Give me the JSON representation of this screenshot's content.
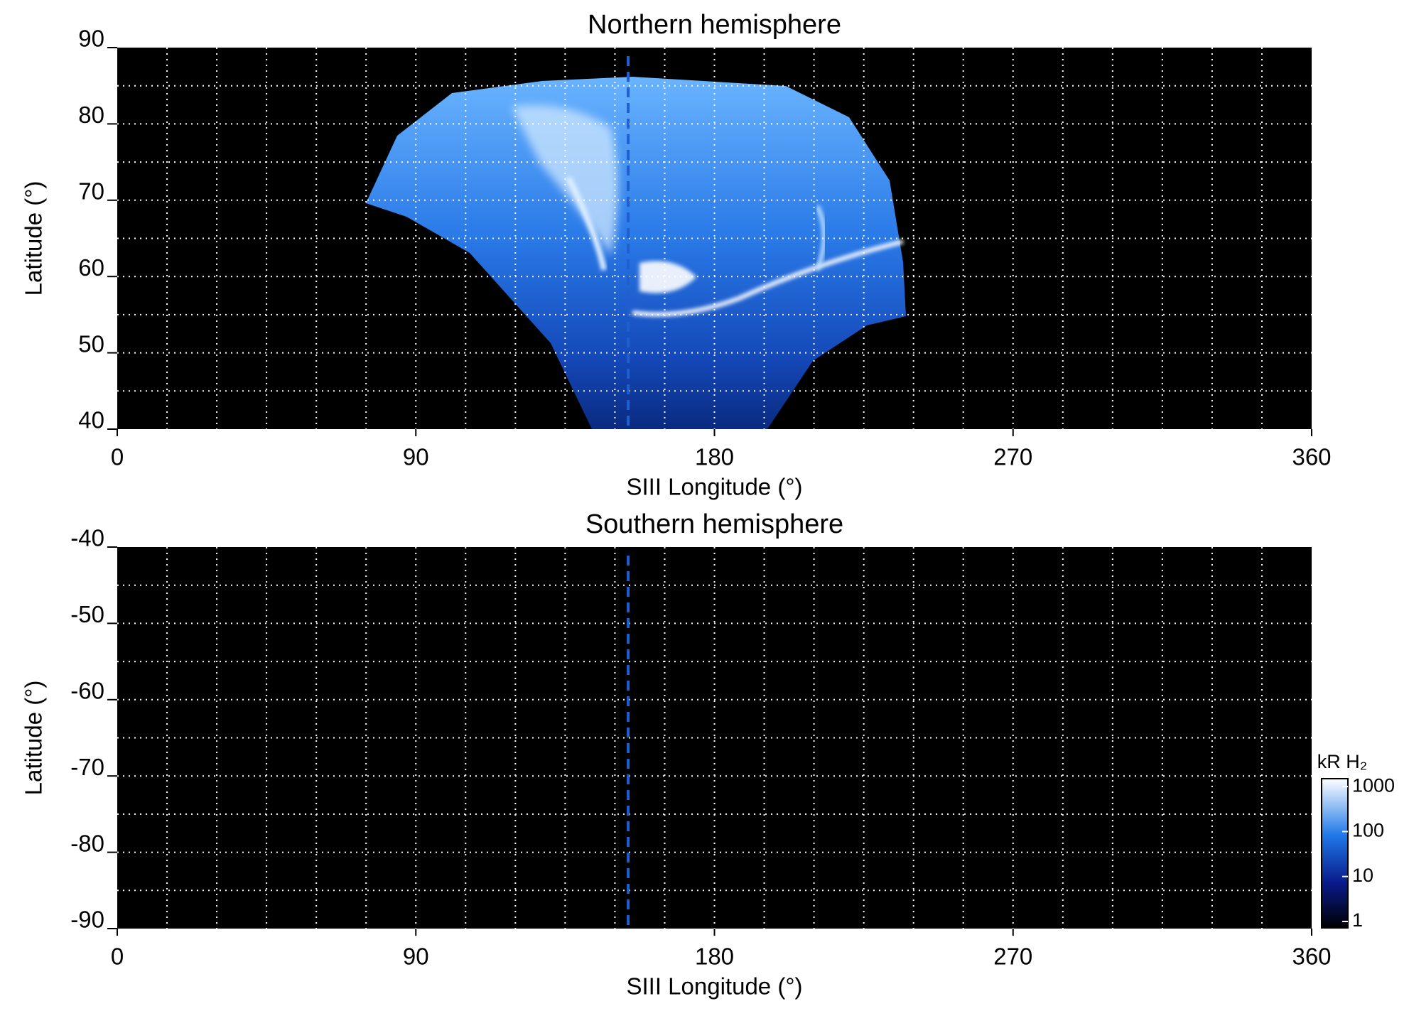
{
  "chart_data": [
    {
      "type": "heatmap",
      "title": "Northern hemisphere",
      "x_label": "SIII Longitude (°)",
      "y_label": "Latitude (°)",
      "xlim": [
        0,
        360
      ],
      "xticks": [
        0,
        90,
        180,
        270,
        360
      ],
      "ylim": [
        40,
        90
      ],
      "yticks": [
        40,
        50,
        60,
        70,
        80,
        90
      ],
      "xgrid": [
        15,
        30,
        45,
        60,
        75,
        90,
        105,
        120,
        135,
        150,
        165,
        180,
        195,
        210,
        225,
        240,
        255,
        270,
        285,
        300,
        315,
        330,
        345
      ],
      "ygrid": [
        45,
        50,
        55,
        60,
        65,
        70,
        75,
        80,
        85
      ],
      "grid": true,
      "reference_line_x": 154,
      "reference_color": "#1f5fd0"
    },
    {
      "type": "heatmap",
      "title": "Southern hemisphere",
      "x_label": "SIII Longitude (°)",
      "y_label": "Latitude (°)",
      "xlim": [
        0,
        360
      ],
      "xticks": [
        0,
        90,
        180,
        270,
        360
      ],
      "ylim": [
        -90,
        -40
      ],
      "yticks": [
        -90,
        -80,
        -70,
        -60,
        -50,
        -40
      ],
      "xgrid": [
        15,
        30,
        45,
        60,
        75,
        90,
        105,
        120,
        135,
        150,
        165,
        180,
        195,
        210,
        225,
        240,
        255,
        270,
        285,
        300,
        315,
        330,
        345
      ],
      "ygrid": [
        -85,
        -80,
        -75,
        -70,
        -65,
        -60,
        -55,
        -50,
        -45
      ],
      "grid": true,
      "reference_line_x": 154,
      "reference_color": "#1f5fd0",
      "colorbar": {
        "label": "kR H₂",
        "scale": "log",
        "lim": [
          0.72,
          1500
        ],
        "ticks": [
          1,
          10,
          100,
          1000
        ]
      }
    }
  ]
}
